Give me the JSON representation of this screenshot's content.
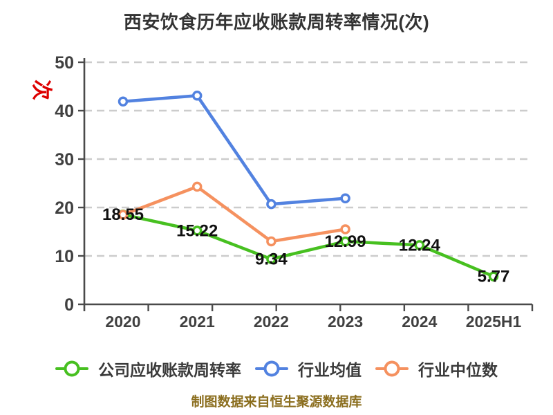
{
  "title": "西安饮食历年应收账款周转率情况(次)",
  "y_axis_unit": "次",
  "caption": "制图数据来自恒生聚源数据库",
  "colors": {
    "company": "#47c020",
    "industry_avg": "#5282e0",
    "industry_median": "#f5915f",
    "grid": "#cccccc",
    "axis": "#4a4a4a",
    "tick_label": "#404040",
    "value_label": "#111111",
    "title": "#333333",
    "legend_text": "#3a3a3a",
    "caption": "#8b6e1e",
    "unit": "#dd0000",
    "marker_fill": "#ffffff"
  },
  "chart_data": {
    "type": "line",
    "categories": [
      "2020",
      "2021",
      "2022",
      "2023",
      "2024",
      "2025H1"
    ],
    "series": [
      {
        "name": "公司应收账款周转率",
        "color_key": "company",
        "values": [
          18.55,
          15.22,
          9.34,
          12.99,
          12.24,
          5.77
        ],
        "labeled": true
      },
      {
        "name": "行业均值",
        "color_key": "industry_avg",
        "values": [
          41.9,
          43.1,
          20.7,
          21.9,
          null,
          null
        ],
        "labeled": false
      },
      {
        "name": "行业中位数",
        "color_key": "industry_median",
        "values": [
          18.5,
          24.3,
          13.0,
          15.5,
          null,
          null
        ],
        "labeled": false
      }
    ],
    "value_labels": [
      "18.55",
      "15.22",
      "9.34",
      "12.99",
      "12.24",
      "5.77"
    ],
    "xlabel": "",
    "ylabel": "次",
    "ylim": [
      0,
      50
    ],
    "y_ticks": [
      0,
      10,
      20,
      30,
      40,
      50
    ],
    "grid": "horizontal-dashed",
    "legend_position": "bottom"
  }
}
